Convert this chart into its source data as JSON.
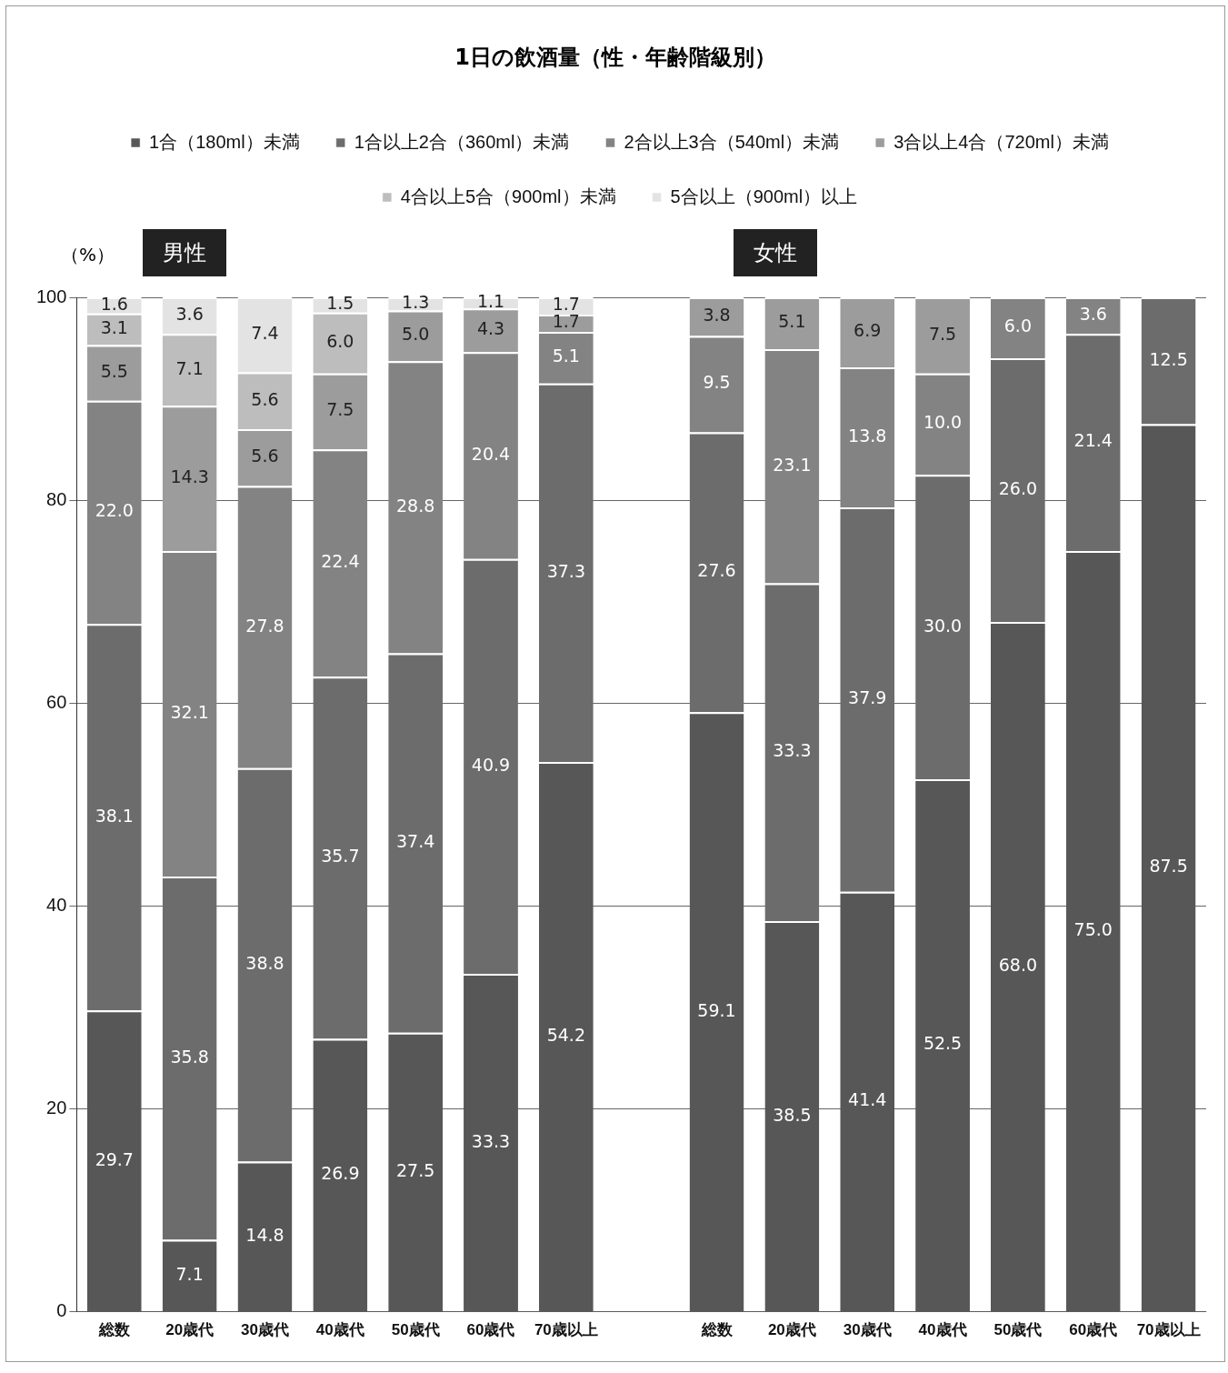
{
  "chart_data": {
    "type": "bar",
    "stacked": true,
    "title": "1日の飲酒量（性・年齢階級別）",
    "ylabel": "（%）",
    "categories": [
      "総数",
      "20歳代",
      "30歳代",
      "40歳代",
      "50歳代",
      "60歳代",
      "70歳以上",
      null,
      "総数",
      "20歳代",
      "30歳代",
      "40歳代",
      "50歳代",
      "60歳代",
      "70歳以上"
    ],
    "series": [
      {
        "name": "1合（180ml）未満",
        "color": "#575757",
        "values": [
          29.7,
          7.1,
          14.8,
          26.9,
          27.5,
          33.3,
          54.2,
          null,
          59.1,
          38.5,
          41.4,
          52.5,
          68.0,
          75.0,
          87.5
        ],
        "value_labels": [
          "29.7",
          "7.1",
          "14.8",
          "26.9",
          "27.5",
          "33.3",
          "54.2",
          null,
          "59.1",
          "38.5",
          "41.4",
          "52.5",
          "68.0",
          "75.0",
          "87.5"
        ]
      },
      {
        "name": "1合以上2合（360ml）未満",
        "color": "#6c6c6c",
        "values": [
          38.1,
          35.8,
          38.8,
          35.7,
          37.4,
          40.9,
          37.3,
          null,
          27.6,
          33.3,
          37.9,
          30.0,
          26.0,
          21.4,
          12.5
        ],
        "value_labels": [
          "38.1",
          "35.8",
          "38.8",
          "35.7",
          "37.4",
          "40.9",
          "37.3",
          null,
          "27.6",
          "33.3",
          "37.9",
          "30.0",
          "26.0",
          "21.4",
          "12.5"
        ]
      },
      {
        "name": "2合以上3合（540ml）未満",
        "color": "#838383",
        "values": [
          22.0,
          32.1,
          27.8,
          22.4,
          28.8,
          20.4,
          5.1,
          null,
          9.5,
          23.1,
          13.8,
          10.0,
          6.0,
          3.6,
          null
        ],
        "value_labels": [
          "22.0",
          "32.1",
          "27.8",
          "22.4",
          "28.8",
          "20.4",
          "5.1",
          null,
          "9.5",
          "23.1",
          "13.8",
          "10.0",
          "6.0",
          "3.6",
          null
        ]
      },
      {
        "name": "3合以上4合（720ml）未満",
        "color": "#9c9c9c",
        "values": [
          5.5,
          14.3,
          5.6,
          7.5,
          5.0,
          4.3,
          1.7,
          null,
          3.8,
          5.1,
          6.9,
          7.5,
          null,
          null,
          null
        ],
        "value_labels": [
          "5.5",
          "14.3",
          "5.6",
          "7.5",
          "5.0",
          "4.3",
          "1.7",
          null,
          "3.8",
          "5.1",
          "6.9",
          "7.5",
          null,
          null,
          null
        ]
      },
      {
        "name": "4合以上5合（900ml）未満",
        "color": "#bdbdbd",
        "values": [
          3.1,
          7.1,
          5.6,
          6.0,
          null,
          null,
          null,
          null,
          null,
          null,
          null,
          null,
          null,
          null,
          null
        ],
        "value_labels": [
          "3.1",
          "7.1",
          "5.6",
          "6.0",
          null,
          null,
          null,
          null,
          null,
          null,
          null,
          null,
          null,
          null,
          null
        ]
      },
      {
        "name": "5合以上（900ml）以上",
        "color": "#e3e3e3",
        "values": [
          1.6,
          3.6,
          7.4,
          1.5,
          1.3,
          1.1,
          1.7,
          null,
          null,
          null,
          null,
          null,
          null,
          null,
          null
        ],
        "value_labels": [
          "1.6",
          "3.6",
          "7.4",
          "1.5",
          "1.3",
          "1.1",
          "1.7",
          null,
          null,
          null,
          null,
          null,
          null,
          null,
          null
        ]
      }
    ],
    "ylim": [
      0,
      100
    ],
    "yticks": [
      0,
      20,
      40,
      60,
      80,
      100
    ],
    "grid": "y",
    "legend": "top",
    "annotations": [
      "男性",
      "女性"
    ]
  }
}
